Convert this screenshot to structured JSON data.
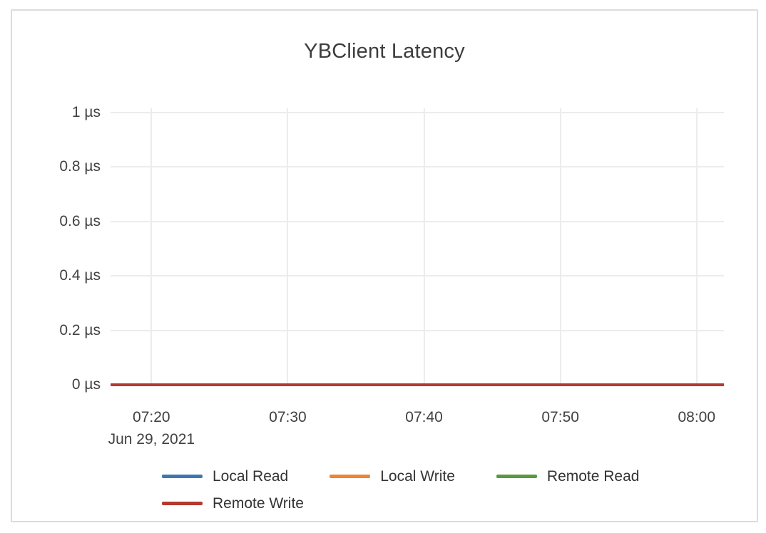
{
  "chart_data": {
    "type": "line",
    "title": "YBClient Latency",
    "xlabel": "",
    "ylabel": "",
    "y_unit": "µs",
    "ylim": [
      0,
      1
    ],
    "y_tick_labels": [
      "0 µs",
      "0.2 µs",
      "0.4 µs",
      "0.6 µs",
      "0.8 µs",
      "1 µs"
    ],
    "y_tick_values": [
      0,
      0.2,
      0.4,
      0.6,
      0.8,
      1
    ],
    "xlim": [
      "07:17",
      "08:02"
    ],
    "x": [
      "07:20",
      "07:30",
      "07:40",
      "07:50",
      "08:00"
    ],
    "x_date_label": "Jun 29, 2021",
    "grid": true,
    "legend_position": "bottom",
    "colors": {
      "grid": "#ececec",
      "card_border": "#dcdcdc",
      "title_text": "#3d3d3d",
      "tick_text": "#414141",
      "legend_text": "#333333"
    },
    "series": [
      {
        "name": "Local Read",
        "color": "#3d78b2",
        "values": [
          0,
          0,
          0,
          0,
          0
        ]
      },
      {
        "name": "Local Write",
        "color": "#ef8433",
        "values": [
          0,
          0,
          0,
          0,
          0
        ]
      },
      {
        "name": "Remote Read",
        "color": "#569b40",
        "values": [
          0,
          0,
          0,
          0,
          0
        ]
      },
      {
        "name": "Remote Write",
        "color": "#b5392f",
        "values": [
          0,
          0,
          0,
          0,
          0
        ]
      }
    ]
  }
}
